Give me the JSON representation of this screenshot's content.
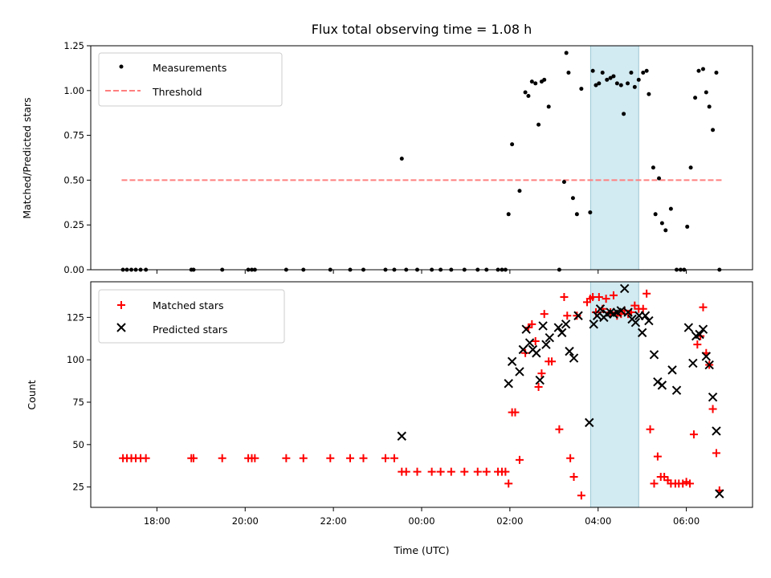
{
  "chart_data": [
    {
      "type": "scatter",
      "title": "Flux total observing time = 1.08 h",
      "xlabel": "",
      "ylabel": "Matched/Predicted stars",
      "xlim": [
        -7.5,
        7.5
      ],
      "ylim": [
        0,
        1.25
      ],
      "x_scale": "time of day, hours relative to 00:00 UTC",
      "yticks": [
        "0.00",
        "0.25",
        "0.50",
        "0.75",
        "1.00",
        "1.25"
      ],
      "shaded_span": {
        "x": [
          3.83,
          4.92
        ],
        "color": "#add8e6"
      },
      "legend_position": "upper-left",
      "legend": {
        "measurements_label": "Measurements",
        "threshold_label": "Threshold"
      },
      "threshold": {
        "y": 0.5,
        "x": [
          -6.8,
          6.8
        ],
        "color": "#ff7f7f",
        "style": "dashed"
      },
      "measurements": {
        "color": "#000000",
        "x": [
          -6.77,
          -6.68,
          -6.58,
          -6.48,
          -6.37,
          -6.25,
          -5.22,
          -5.17,
          -4.52,
          -3.93,
          -3.85,
          -3.78,
          -3.07,
          -2.68,
          -2.07,
          -1.62,
          -1.32,
          -0.82,
          -0.62,
          -0.45,
          -0.35,
          -0.1,
          0.23,
          0.43,
          0.67,
          0.97,
          1.27,
          1.47,
          1.73,
          1.82,
          1.9,
          1.97,
          2.05,
          2.22,
          2.35,
          2.42,
          2.5,
          2.58,
          2.65,
          2.72,
          2.78,
          2.88,
          3.12,
          3.23,
          3.28,
          3.33,
          3.43,
          3.52,
          3.62,
          3.82,
          3.88,
          3.95,
          4.02,
          4.1,
          4.2,
          4.28,
          4.35,
          4.43,
          4.52,
          4.58,
          4.67,
          4.75,
          4.83,
          4.92,
          5.02,
          5.1,
          5.15,
          5.25,
          5.3,
          5.38,
          5.45,
          5.53,
          5.65,
          5.78,
          5.87,
          5.95,
          6.02,
          6.1,
          6.2,
          6.28,
          6.38,
          6.45,
          6.52,
          6.6,
          6.68,
          6.75
        ],
        "y": [
          0.0,
          0.0,
          0.0,
          0.0,
          0.0,
          0.0,
          0.0,
          0.0,
          0.0,
          0.0,
          0.0,
          0.0,
          0.0,
          0.0,
          0.0,
          0.0,
          0.0,
          0.0,
          0.0,
          0.62,
          0.0,
          0.0,
          0.0,
          0.0,
          0.0,
          0.0,
          0.0,
          0.0,
          0.0,
          0.0,
          0.0,
          0.31,
          0.7,
          0.44,
          0.99,
          0.97,
          1.05,
          1.04,
          0.81,
          1.05,
          1.06,
          0.91,
          0.0,
          0.49,
          1.21,
          1.1,
          0.4,
          0.31,
          1.01,
          0.32,
          1.11,
          1.03,
          1.04,
          1.1,
          1.06,
          1.07,
          1.08,
          1.04,
          1.03,
          0.87,
          1.04,
          1.1,
          1.02,
          1.06,
          1.1,
          1.11,
          0.98,
          0.57,
          0.31,
          0.51,
          0.26,
          0.22,
          0.34,
          0.0,
          0.0,
          0.0,
          0.24,
          0.57,
          0.96,
          1.11,
          1.12,
          0.99,
          0.91,
          0.78,
          1.1,
          0.0
        ]
      }
    },
    {
      "type": "scatter",
      "xlabel": "Time (UTC)",
      "ylabel": "Count",
      "xlim": [
        -7.5,
        7.5
      ],
      "ylim": [
        13,
        146
      ],
      "xticks": [
        "18:00",
        "20:00",
        "22:00",
        "00:00",
        "02:00",
        "04:00",
        "06:00"
      ],
      "xtick_values": [
        -6,
        -4,
        -2,
        0,
        2,
        4,
        6
      ],
      "yticks": [
        "25",
        "50",
        "75",
        "100",
        "125"
      ],
      "legend_position": "upper-left",
      "legend": {
        "matched_label": "Matched stars",
        "predicted_label": "Predicted stars"
      },
      "matched": {
        "color": "#ff0000",
        "marker": "plus",
        "x": [
          -6.77,
          -6.68,
          -6.58,
          -6.48,
          -6.37,
          -6.25,
          -5.22,
          -5.17,
          -4.52,
          -3.93,
          -3.85,
          -3.78,
          -3.07,
          -2.68,
          -2.07,
          -1.62,
          -1.32,
          -0.82,
          -0.62,
          -0.45,
          -0.35,
          -0.1,
          0.23,
          0.43,
          0.67,
          0.97,
          1.27,
          1.47,
          1.73,
          1.82,
          1.9,
          1.97,
          2.05,
          2.12,
          2.22,
          2.35,
          2.42,
          2.5,
          2.58,
          2.65,
          2.72,
          2.78,
          2.88,
          2.95,
          3.12,
          3.23,
          3.3,
          3.37,
          3.45,
          3.52,
          3.62,
          3.75,
          3.82,
          3.88,
          3.95,
          4.02,
          4.1,
          4.18,
          4.28,
          4.35,
          4.43,
          4.52,
          4.6,
          4.68,
          4.75,
          4.83,
          4.92,
          5.02,
          5.1,
          5.18,
          5.27,
          5.35,
          5.42,
          5.5,
          5.58,
          5.65,
          5.75,
          5.83,
          5.92,
          6.0,
          6.08,
          6.17,
          6.25,
          6.32,
          6.38,
          6.45,
          6.52,
          6.6,
          6.68,
          6.75
        ],
        "y": [
          42,
          42,
          42,
          42,
          42,
          42,
          42,
          42,
          42,
          42,
          42,
          42,
          42,
          42,
          42,
          42,
          42,
          42,
          42,
          34,
          34,
          34,
          34,
          34,
          34,
          34,
          34,
          34,
          34,
          34,
          34,
          27,
          69,
          69,
          41,
          104,
          119,
          121,
          111,
          84,
          92,
          127,
          99,
          99,
          59,
          137,
          126,
          42,
          31,
          126,
          20,
          134,
          136,
          137,
          128,
          137,
          130,
          136,
          128,
          138,
          126,
          127,
          129,
          127,
          128,
          132,
          130,
          130,
          139,
          59,
          27,
          43,
          31,
          31,
          29,
          27,
          27,
          27,
          27,
          28,
          27,
          56,
          109,
          114,
          131,
          104,
          97,
          71,
          45,
          23
        ]
      },
      "predicted": {
        "color": "#000000",
        "marker": "x",
        "x": [
          -0.45,
          1.97,
          2.05,
          2.22,
          2.3,
          2.37,
          2.45,
          2.52,
          2.6,
          2.68,
          2.75,
          2.82,
          2.9,
          3.1,
          3.18,
          3.27,
          3.35,
          3.45,
          3.55,
          3.8,
          3.9,
          3.98,
          4.05,
          4.13,
          4.2,
          4.28,
          4.35,
          4.43,
          4.52,
          4.6,
          4.68,
          4.77,
          4.85,
          4.93,
          5.0,
          5.07,
          5.15,
          5.27,
          5.35,
          5.45,
          5.68,
          5.78,
          6.05,
          6.15,
          6.22,
          6.3,
          6.38,
          6.45,
          6.52,
          6.6,
          6.68,
          6.75
        ],
        "y": [
          55,
          86,
          99,
          93,
          106,
          118,
          110,
          106,
          104,
          88,
          120,
          109,
          113,
          119,
          116,
          121,
          105,
          101,
          126,
          63,
          121,
          126,
          130,
          125,
          127,
          128,
          127,
          128,
          129,
          142,
          128,
          124,
          122,
          126,
          116,
          126,
          123,
          103,
          87,
          85,
          94,
          82,
          119,
          98,
          114,
          115,
          118,
          102,
          97,
          78,
          58,
          21
        ]
      }
    }
  ]
}
